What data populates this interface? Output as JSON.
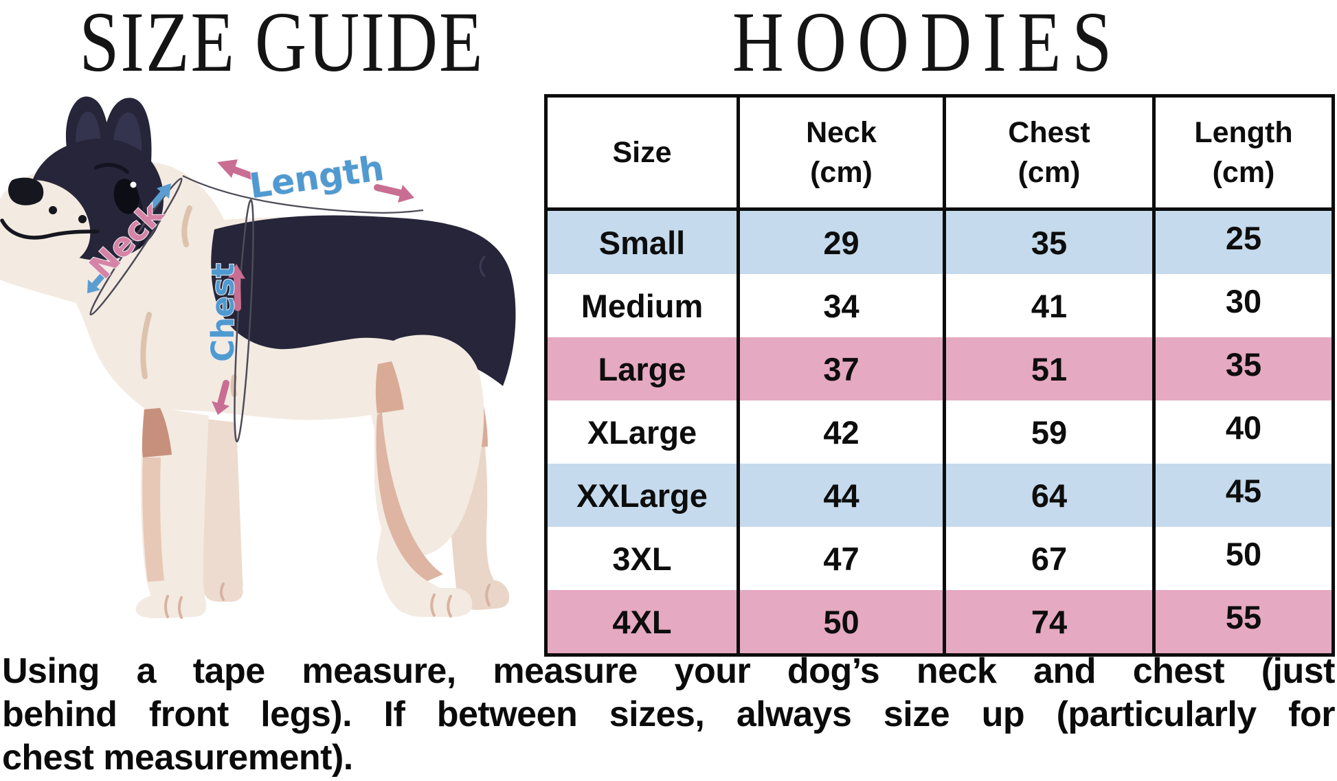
{
  "titles": {
    "left": "SIZE GUIDE",
    "right": "HOODIES"
  },
  "diagram": {
    "labels": {
      "length": "Length",
      "neck": "Neck",
      "chest": "Chest"
    }
  },
  "table": {
    "headers": [
      "Size",
      "Neck\n(cm)",
      "Chest\n(cm)",
      "Length\n(cm)"
    ],
    "rows": [
      {
        "size": "Small",
        "neck": "29",
        "chest": "35",
        "length": "25",
        "bg": "blue"
      },
      {
        "size": "Medium",
        "neck": "34",
        "chest": "41",
        "length": "30",
        "bg": "white"
      },
      {
        "size": "Large",
        "neck": "37",
        "chest": "51",
        "length": "35",
        "bg": "pink"
      },
      {
        "size": "XLarge",
        "neck": "42",
        "chest": "59",
        "length": "40",
        "bg": "white"
      },
      {
        "size": "XXLarge",
        "neck": "44",
        "chest": "64",
        "length": "45",
        "bg": "blue"
      },
      {
        "size": "3XL",
        "neck": "47",
        "chest": "67",
        "length": "50",
        "bg": "white"
      },
      {
        "size": "4XL",
        "neck": "50",
        "chest": "74",
        "length": "55",
        "bg": "pink"
      }
    ]
  },
  "note": {
    "lines": [
      "Using a tape measure, measure your dog’s neck and chest (just",
      "behind front legs). If between sizes, always size up (particularly for",
      "chest measurement)."
    ]
  },
  "colors": {
    "row_blue": "#c5daec",
    "row_pink": "#e5a9c1",
    "accent_blue": "#4f9ad0",
    "accent_pink": "#c96e93",
    "accent_pink_light": "#d583a6",
    "navy": "#262539",
    "cream": "#f3eae1",
    "table_border": "#0c0c0c"
  }
}
